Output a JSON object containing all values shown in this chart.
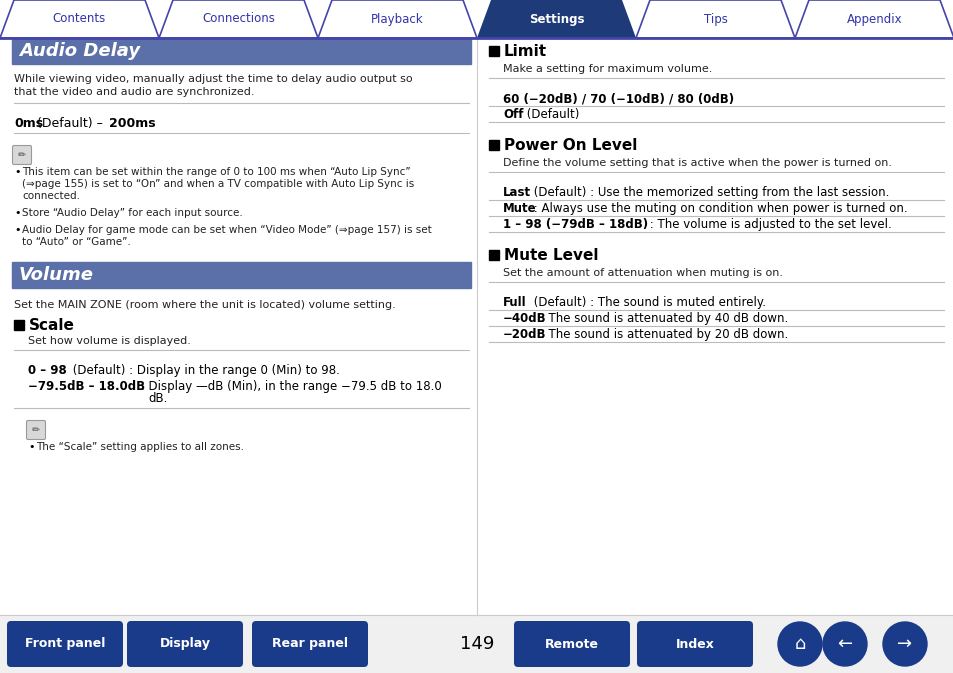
{
  "tab_labels": [
    "Contents",
    "Connections",
    "Playback",
    "Settings",
    "Tips",
    "Appendix"
  ],
  "active_tab": 3,
  "tab_color_active": "#1e3a78",
  "tab_color_inactive": "#ffffff",
  "tab_text_color_active": "#ffffff",
  "tab_text_color_inactive": "#3333aa",
  "tab_border_color": "#4444aa",
  "header_bg": "#5b6fa8",
  "bottom_btn_color": "#1a3a8a",
  "page_number": "149",
  "left_col": {
    "section1_title": "Audio Delay",
    "section1_desc1": "While viewing video, manually adjust the time to delay audio output so",
    "section1_desc2": "that the video and audio are synchronized.",
    "section1_range": [
      {
        "text": "0ms",
        "bold": true
      },
      {
        "text": " (Default) – ",
        "bold": false
      },
      {
        "text": "200ms",
        "bold": true
      }
    ],
    "note1_bullets": [
      "This item can be set within the range of 0 to 100 ms when “Auto Lip Sync”\n(⇒page 155) is set to “On” and when a TV compatible with Auto Lip Sync is\nconnected.",
      "Store “Audio Delay” for each input source.",
      "Audio Delay for game mode can be set when “Video Mode” (⇒page 157) is set\nto “Auto” or “Game”."
    ],
    "section2_title": "Volume",
    "section2_desc": "Set the MAIN ZONE (room where the unit is located) volume setting.",
    "scale_title": "Scale",
    "scale_desc": "Set how volume is displayed.",
    "scale_rows": [
      [
        {
          "text": "0 – 98",
          "bold": true
        },
        {
          "text": " (Default) : Display in the range 0 (Min) to 98.",
          "bold": false
        }
      ],
      [
        {
          "text": "−79.5dB – 18.0dB",
          "bold": true
        },
        {
          "text": " : Display —dB (Min), in the range −79.5 dB to 18.0\ndB.",
          "bold": false
        }
      ]
    ],
    "note2_bullets": [
      "The “Scale” setting applies to all zones."
    ]
  },
  "right_col": {
    "sections": [
      {
        "title": "Limit",
        "desc": "Make a setting for maximum volume.",
        "rows": [
          [
            {
              "text": "60 (−20dB) / 70 (−10dB) / 80 (0dB)",
              "bold": true
            }
          ],
          [
            {
              "text": "Off",
              "bold": true
            },
            {
              "text": " (Default)",
              "bold": false
            }
          ]
        ]
      },
      {
        "title": "Power On Level",
        "desc": "Define the volume setting that is active when the power is turned on.",
        "rows": [
          [
            {
              "text": "Last",
              "bold": true
            },
            {
              "text": " (Default) : Use the memorized setting from the last session.",
              "bold": false
            }
          ],
          [
            {
              "text": "Mute",
              "bold": true
            },
            {
              "text": " : Always use the muting on condition when power is turned on.",
              "bold": false
            }
          ],
          [
            {
              "text": "1 – 98 (−79dB – 18dB)",
              "bold": true
            },
            {
              "text": " : The volume is adjusted to the set level.",
              "bold": false
            }
          ]
        ]
      },
      {
        "title": "Mute Level",
        "desc": "Set the amount of attenuation when muting is on.",
        "rows": [
          [
            {
              "text": "Full",
              "bold": true
            },
            {
              "text": " (Default) : The sound is muted entirely.",
              "bold": false
            }
          ],
          [
            {
              "text": "−40dB",
              "bold": true
            },
            {
              "text": " : The sound is attenuated by 40 dB down.",
              "bold": false
            }
          ],
          [
            {
              "text": "−20dB",
              "bold": true
            },
            {
              "text": " : The sound is attenuated by 20 dB down.",
              "bold": false
            }
          ]
        ]
      }
    ]
  },
  "bottom_buttons_left": [
    "Front panel",
    "Display",
    "Rear panel"
  ],
  "bottom_buttons_right": [
    "Remote",
    "Index"
  ]
}
